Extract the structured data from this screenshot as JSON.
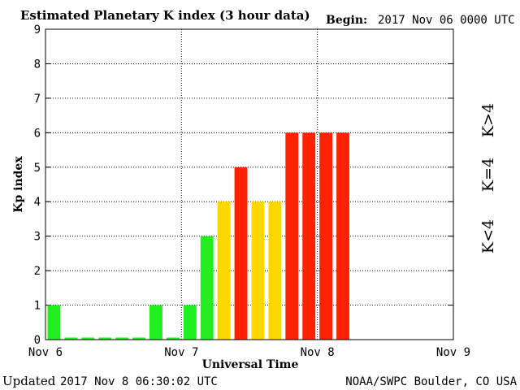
{
  "header": {
    "title": "Estimated Planetary K index (3 hour data)",
    "begin_label": "Begin:",
    "begin_value": "2017 Nov 06 0000 UTC"
  },
  "footer": {
    "updated_label": "Updated",
    "updated_value": "2017 Nov  8 06:30:02 UTC",
    "source": "NOAA/SWPC Boulder, CO USA"
  },
  "legend": {
    "low": "K<4",
    "mid": "K=4",
    "high": "K>4"
  },
  "colors": {
    "low": "#22ee22",
    "mid": "#ffd700",
    "high": "#ff2200"
  },
  "chart_data": {
    "type": "bar",
    "title": "Estimated Planetary K index (3 hour data)",
    "xlabel": "Universal Time",
    "ylabel": "Kp index",
    "ylim": [
      0,
      9
    ],
    "xlim_days": [
      0,
      3
    ],
    "grid": true,
    "y_ticks": [
      "0",
      "1",
      "2",
      "3",
      "4",
      "5",
      "6",
      "7",
      "8",
      "9"
    ],
    "x_ticks": [
      "Nov 6",
      "Nov 7",
      "Nov 8",
      "Nov 9"
    ],
    "interval_hours": 3,
    "start": "2017 Nov 06 0000 UTC",
    "values": [
      1,
      0,
      0,
      0,
      0,
      0,
      1,
      0,
      1,
      3,
      4,
      5,
      4,
      4,
      6,
      6,
      6,
      6
    ]
  }
}
